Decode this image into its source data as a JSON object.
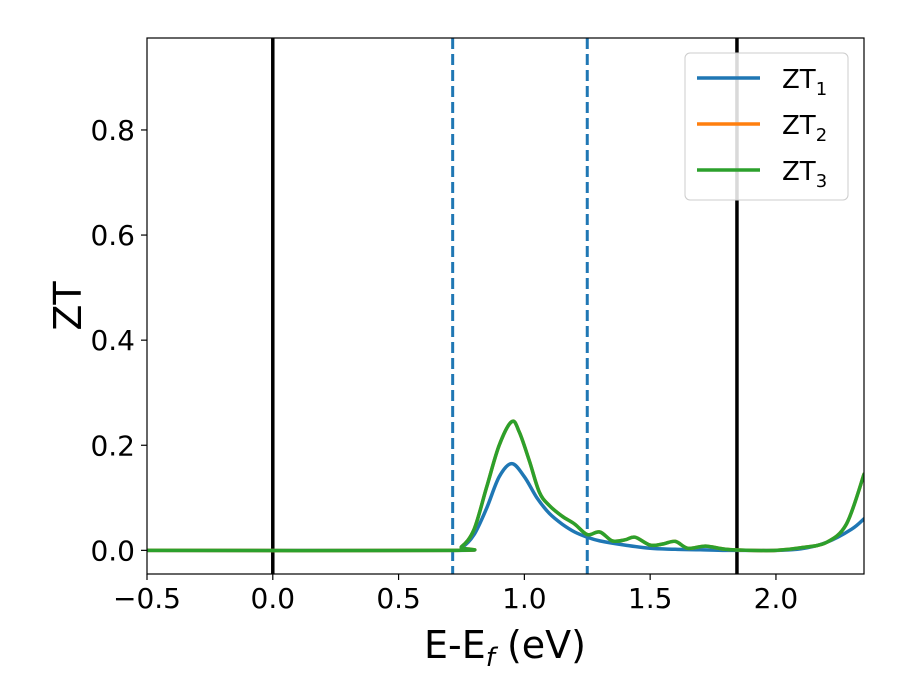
{
  "chart_data": {
    "type": "line",
    "xlabel": "E-E",
    "xlabel_sub": "f",
    "xlabel_unit": " (eV)",
    "ylabel": "ZT",
    "xlim": [
      -0.5,
      2.35
    ],
    "ylim": [
      -0.045,
      0.975
    ],
    "xticks": [
      {
        "value": -0.5,
        "label": "−0.5"
      },
      {
        "value": 0.0,
        "label": "0.0"
      },
      {
        "value": 0.5,
        "label": "0.5"
      },
      {
        "value": 1.0,
        "label": "1.0"
      },
      {
        "value": 1.5,
        "label": "1.5"
      },
      {
        "value": 2.0,
        "label": "2.0"
      }
    ],
    "yticks": [
      {
        "value": 0.0,
        "label": "0.0"
      },
      {
        "value": 0.2,
        "label": "0.2"
      },
      {
        "value": 0.4,
        "label": "0.4"
      },
      {
        "value": 0.6,
        "label": "0.6"
      },
      {
        "value": 0.8,
        "label": "0.8"
      }
    ],
    "grid": false,
    "legend_position": "top-right",
    "vlines": [
      {
        "x": 0.0,
        "style": "solid",
        "color": "#000000"
      },
      {
        "x": 0.715,
        "style": "dashed",
        "color": "#1f77b4"
      },
      {
        "x": 1.25,
        "style": "dashed",
        "color": "#1f77b4"
      },
      {
        "x": 1.845,
        "style": "solid",
        "color": "#000000"
      }
    ],
    "series": [
      {
        "name": "ZT",
        "sub": "1",
        "color": "#1f77b4",
        "x": [
          -0.5,
          0.7,
          0.75,
          0.8,
          0.85,
          0.9,
          0.95,
          1.0,
          1.05,
          1.1,
          1.15,
          1.2,
          1.25,
          1.3,
          1.4,
          1.5,
          1.6,
          1.7,
          1.8,
          1.9,
          2.0,
          2.1,
          2.2,
          2.3,
          2.35
        ],
        "y": [
          0.0,
          0.0,
          0.005,
          0.03,
          0.08,
          0.14,
          0.165,
          0.14,
          0.1,
          0.07,
          0.05,
          0.035,
          0.025,
          0.018,
          0.01,
          0.004,
          0.002,
          0.001,
          0.0,
          0.0,
          0.0,
          0.003,
          0.015,
          0.04,
          0.06
        ]
      },
      {
        "name": "ZT",
        "sub": "2",
        "color": "#ff7f0e",
        "x": [
          -0.5,
          0.7,
          0.75,
          0.8,
          0.85,
          0.9,
          0.95,
          0.98,
          1.02,
          1.06,
          1.1,
          1.15,
          1.2,
          1.25,
          1.3,
          1.35,
          1.4,
          1.44,
          1.5,
          1.55,
          1.6,
          1.65,
          1.72,
          1.8,
          1.9,
          2.0,
          2.1,
          2.2,
          2.28,
          2.35
        ],
        "y": [
          0.0,
          0.0,
          0.007,
          0.04,
          0.12,
          0.2,
          0.245,
          0.225,
          0.17,
          0.11,
          0.085,
          0.065,
          0.05,
          0.03,
          0.035,
          0.018,
          0.02,
          0.025,
          0.01,
          0.012,
          0.017,
          0.004,
          0.008,
          0.002,
          0.0,
          0.0,
          0.005,
          0.015,
          0.05,
          0.145
        ]
      },
      {
        "name": "ZT",
        "sub": "3",
        "color": "#2ca02c",
        "x": [
          -0.5,
          0.7,
          0.75,
          0.8,
          0.85,
          0.9,
          0.95,
          0.98,
          1.02,
          1.06,
          1.1,
          1.15,
          1.2,
          1.25,
          1.3,
          1.35,
          1.4,
          1.44,
          1.5,
          1.55,
          1.6,
          1.65,
          1.72,
          1.8,
          1.9,
          2.0,
          2.1,
          2.2,
          2.28,
          2.35
        ],
        "y": [
          0.0,
          0.0,
          0.007,
          0.04,
          0.12,
          0.2,
          0.245,
          0.225,
          0.17,
          0.11,
          0.085,
          0.065,
          0.05,
          0.03,
          0.035,
          0.018,
          0.02,
          0.025,
          0.01,
          0.012,
          0.017,
          0.004,
          0.008,
          0.002,
          0.0,
          0.0,
          0.005,
          0.015,
          0.05,
          0.145
        ]
      }
    ]
  }
}
